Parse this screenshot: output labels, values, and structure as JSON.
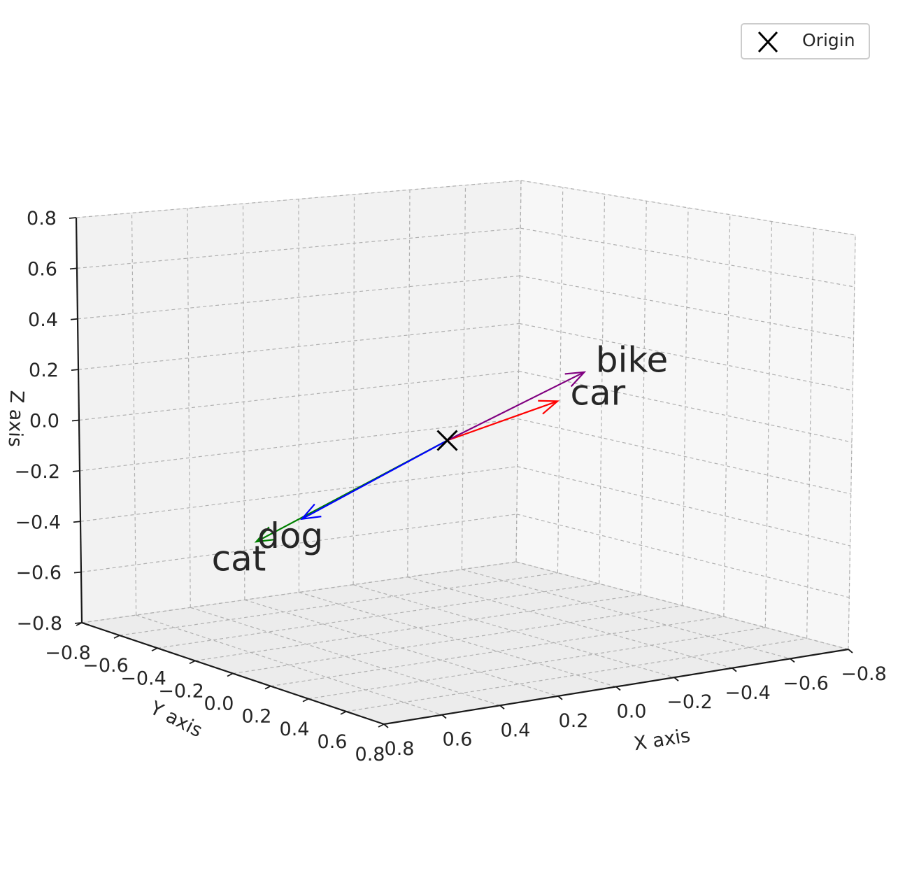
{
  "chart_data": {
    "type": "3d-vector",
    "xlabel": "X axis",
    "ylabel": "Y axis",
    "zlabel": "Z axis",
    "xlim": [
      -0.8,
      0.8
    ],
    "ylim": [
      -0.8,
      0.8
    ],
    "zlim": [
      -0.8,
      0.8
    ],
    "ticks": [
      "−0.8",
      "−0.6",
      "−0.4",
      "−0.2",
      "0.0",
      "0.2",
      "0.4",
      "0.6",
      "0.8"
    ],
    "tick_values": [
      -0.8,
      -0.6,
      -0.4,
      -0.2,
      0.0,
      0.2,
      0.4,
      0.6,
      0.8
    ],
    "grid": true,
    "legend": {
      "position": "top-right",
      "entries": [
        {
          "label": "Origin",
          "marker": "x",
          "color": "#000000"
        }
      ]
    },
    "origin": [
      0,
      0,
      0
    ],
    "vectors": [
      {
        "label": "cat",
        "color": "#008000",
        "end": [
          0.5,
          -0.3,
          -0.4
        ]
      },
      {
        "label": "dog",
        "color": "#0000ff",
        "end": [
          0.4,
          -0.2,
          -0.3
        ]
      },
      {
        "label": "car",
        "color": "#ff0000",
        "end": [
          -0.2,
          0.3,
          0.2
        ]
      },
      {
        "label": "bike",
        "color": "#800080",
        "end": [
          -0.3,
          0.3,
          0.3
        ]
      }
    ]
  }
}
